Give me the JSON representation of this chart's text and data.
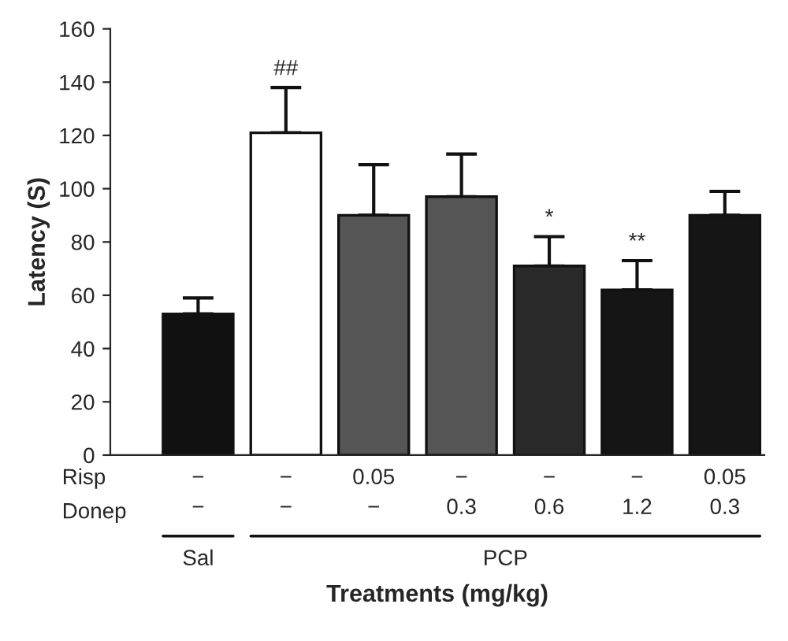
{
  "chart_data": {
    "type": "bar",
    "xlabel": "Treatments (mg/kg)",
    "ylabel": "Latency (S)",
    "categories": [
      "−\n−",
      "−\n−",
      "0.05\n−",
      "−\n0.3",
      "−\n0.6",
      "−\n1.2",
      "0.05\n0.3"
    ],
    "values": [
      53,
      121,
      90,
      97,
      71,
      62,
      90
    ],
    "colors": [
      "#111111",
      "#ffffff",
      "#555555",
      "#555555",
      "#2a2a2a",
      "#151515",
      "#151515"
    ],
    "errors": [
      [
        53,
        59
      ],
      [
        121,
        138
      ],
      [
        90,
        109
      ],
      [
        97,
        113
      ],
      [
        71,
        82
      ],
      [
        62,
        73
      ],
      [
        90,
        99
      ]
    ],
    "ylim": [
      0,
      160
    ],
    "yticks": [
      0,
      20,
      40,
      60,
      80,
      100,
      120,
      140,
      160
    ],
    "annotations": [
      "Risp",
      "Donep",
      "Sal",
      "PCP",
      "##",
      "*",
      "**"
    ],
    "grid": false
  }
}
